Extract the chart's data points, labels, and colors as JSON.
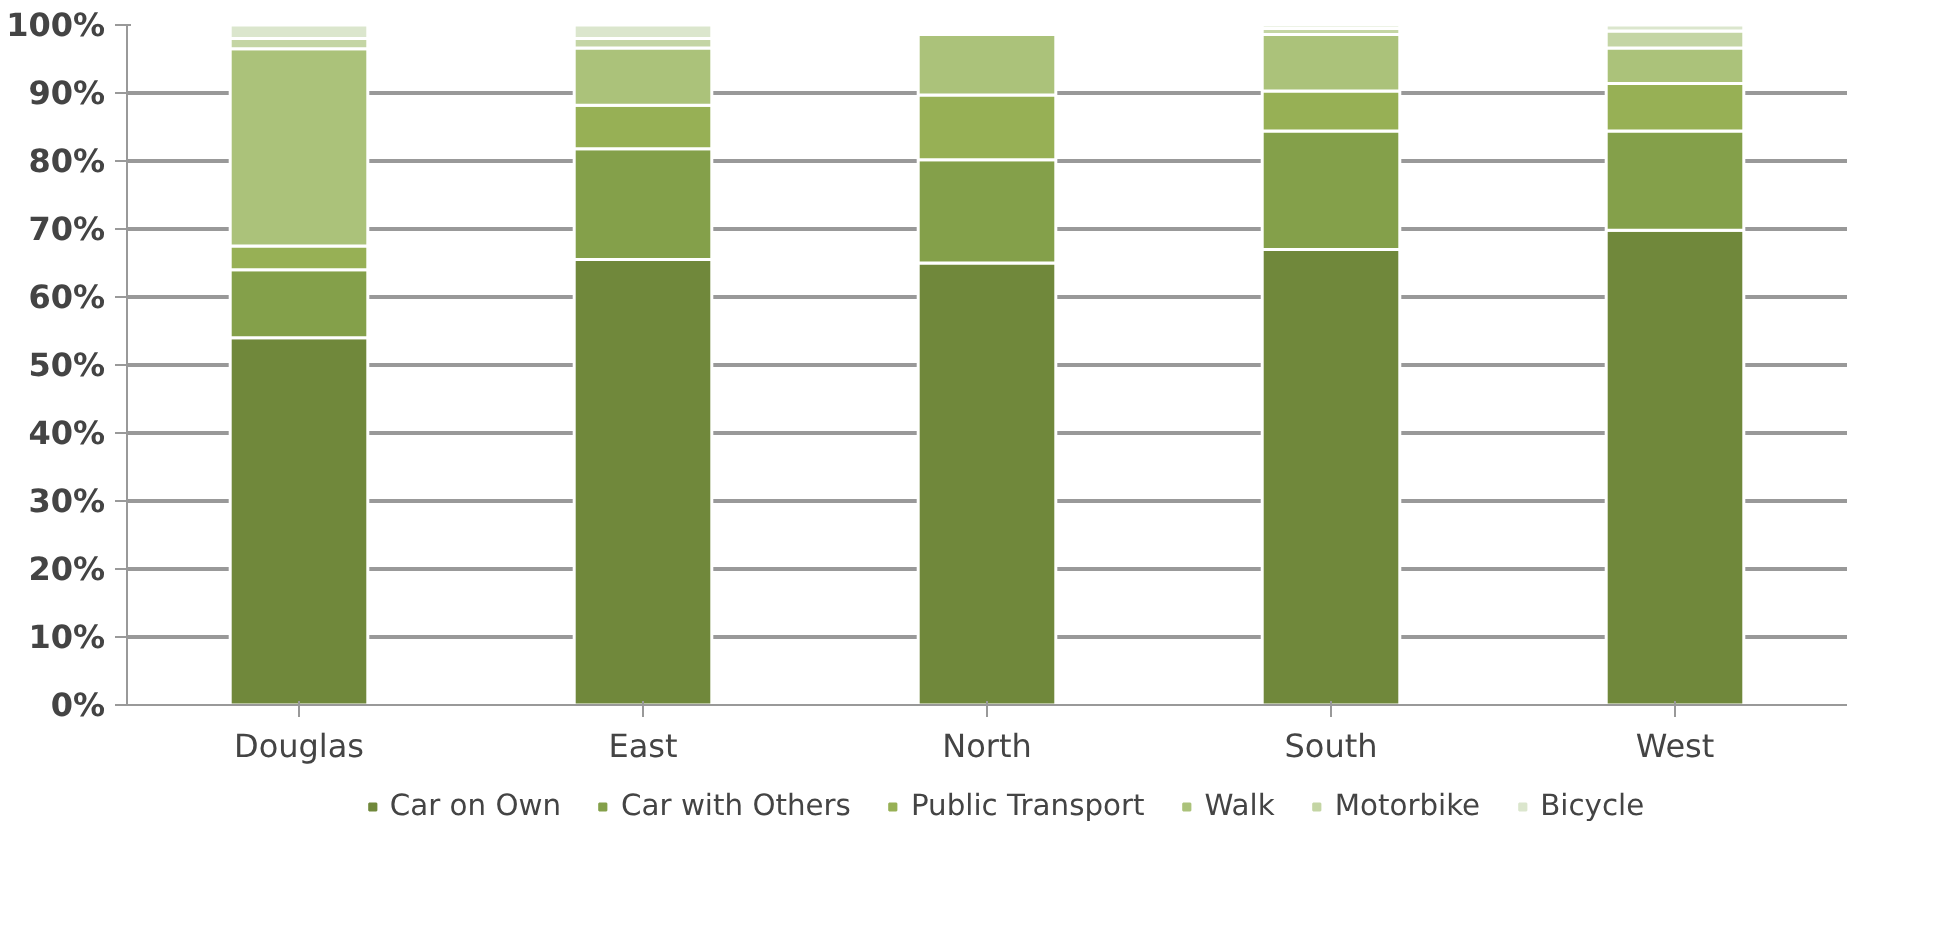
{
  "chart_data": {
    "type": "bar",
    "stacked": true,
    "categories": [
      "Douglas",
      "East",
      "North",
      "South",
      "West"
    ],
    "series": [
      {
        "name": "Car on Own",
        "color": "#70883b",
        "values": [
          54,
          65.5,
          65,
          67,
          69.8
        ]
      },
      {
        "name": "Car with Others",
        "color": "#84a04a",
        "values": [
          10,
          16.3,
          15.2,
          17.4,
          14.6
        ]
      },
      {
        "name": "Public Transport",
        "color": "#97b055",
        "values": [
          3.5,
          6.4,
          9.5,
          5.9,
          7
        ]
      },
      {
        "name": "Walk",
        "color": "#abc27a",
        "values": [
          29,
          8.4,
          8.9,
          8.3,
          5.2
        ]
      },
      {
        "name": "Motorbike",
        "color": "#c4d5a4",
        "values": [
          1.5,
          1.4,
          null,
          0.9,
          2.5
        ]
      },
      {
        "name": "Bicycle",
        "color": "#dbe6cd",
        "values": [
          2,
          2,
          null,
          0.5,
          0.9
        ]
      }
    ],
    "ylim": [
      0,
      100
    ],
    "yticks": [
      {
        "value": 0,
        "label": "0%"
      },
      {
        "value": 10,
        "label": "10%"
      },
      {
        "value": 20,
        "label": "20%"
      },
      {
        "value": 30,
        "label": "30%"
      },
      {
        "value": 40,
        "label": "40%"
      },
      {
        "value": 50,
        "label": "50%"
      },
      {
        "value": 60,
        "label": "60%"
      },
      {
        "value": 70,
        "label": "70%"
      },
      {
        "value": 80,
        "label": "80%"
      },
      {
        "value": 90,
        "label": "90%"
      },
      {
        "value": 100,
        "label": "100%"
      }
    ],
    "grid": "y",
    "legend": "bottom"
  }
}
